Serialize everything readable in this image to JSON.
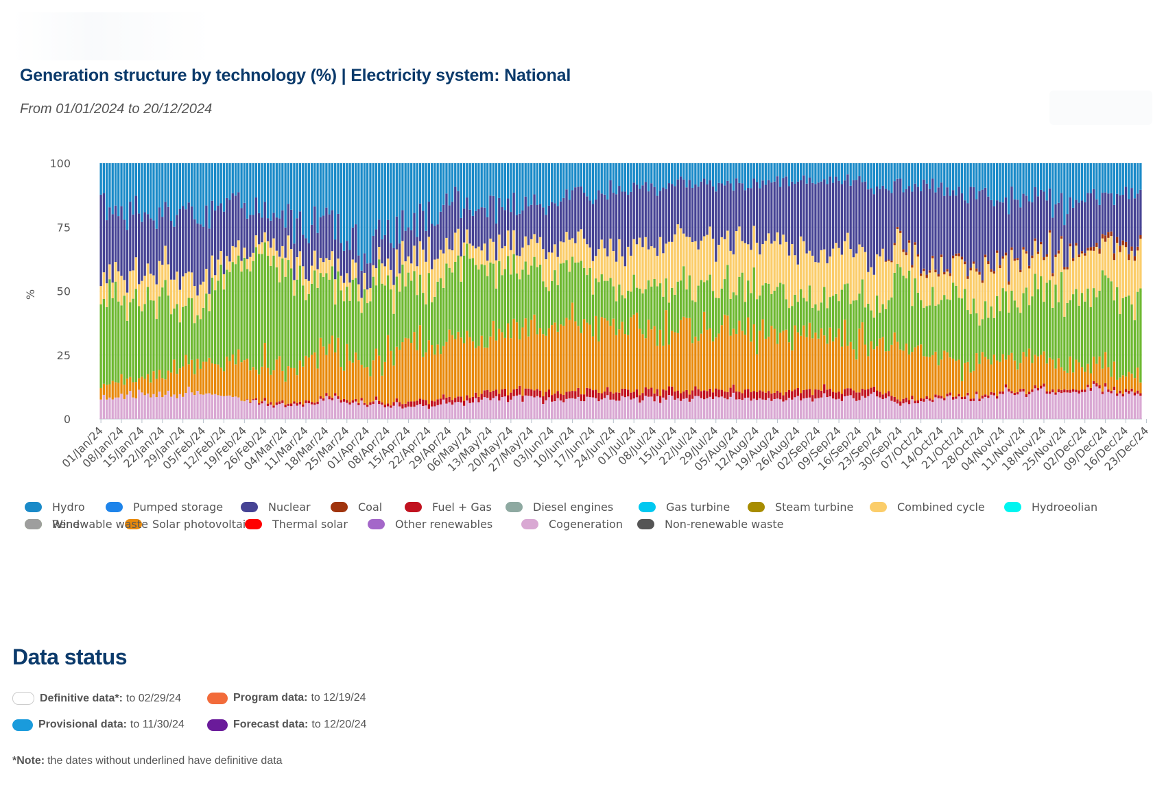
{
  "header": {
    "title": "Generation structure by technology (%) | Electricity system: National",
    "subtitle": "From 01/01/2024 to 20/12/2024"
  },
  "colors": {
    "Hydro": "#1a8ac8",
    "Pumped storage": "#1e84ea",
    "Nuclear": "#464394",
    "Coal": "#a0340e",
    "Fuel + Gas": "#c1121f",
    "Diesel engines": "#8ea9a1",
    "Gas turbine": "#00c8f0",
    "Steam turbine": "#a78c00",
    "Combined cycle": "#fbcd6a",
    "Hydroeolian": "#00f5f0",
    "Wind": "#6db830",
    "Solar photovoltaic": "#e8890b",
    "Thermal solar": "#ff0000",
    "Other renewables": "#a467c9",
    "Cogeneration": "#d9a8d3",
    "Non-renewable waste": "#555555",
    "Renewable waste": "#9e9e9e"
  },
  "legend": [
    "Hydro",
    "Pumped storage",
    "Nuclear",
    "Coal",
    "Fuel + Gas",
    "Diesel engines",
    "Gas turbine",
    "Steam turbine",
    "Combined cycle",
    "Hydroeolian",
    "Wind",
    "Solar photovoltaic",
    "Thermal solar",
    "Other renewables",
    "Cogeneration",
    "Non-renewable waste",
    "Renewable waste"
  ],
  "chart_data": {
    "type": "bar",
    "stacked": true,
    "ylabel": "%",
    "ylim": [
      0,
      100
    ],
    "yticks": [
      0,
      25,
      50,
      75,
      100
    ],
    "x_tick_labels": [
      "01/Jan/24",
      "08/Jan/24",
      "15/Jan/24",
      "22/Jan/24",
      "29/Jan/24",
      "05/Feb/24",
      "12/Feb/24",
      "19/Feb/24",
      "26/Feb/24",
      "04/Mar/24",
      "11/Mar/24",
      "18/Mar/24",
      "25/Mar/24",
      "01/Apr/24",
      "08/Apr/24",
      "15/Apr/24",
      "22/Apr/24",
      "29/Apr/24",
      "06/May/24",
      "13/May/24",
      "20/May/24",
      "27/May/24",
      "03/Jun/24",
      "10/Jun/24",
      "17/Jun/24",
      "24/Jun/24",
      "01/Jul/24",
      "08/Jul/24",
      "15/Jul/24",
      "22/Jul/24",
      "29/Jul/24",
      "05/Aug/24",
      "12/Aug/24",
      "19/Aug/24",
      "26/Aug/24",
      "02/Sep/24",
      "09/Sep/24",
      "16/Sep/24",
      "23/Sep/24",
      "30/Sep/24",
      "07/Oct/24",
      "14/Oct/24",
      "21/Oct/24",
      "28/Oct/24",
      "04/Nov/24",
      "11/Nov/24",
      "18/Nov/24",
      "25/Nov/24",
      "02/Dec/24",
      "09/Dec/24",
      "16/Dec/24",
      "23/Dec/24"
    ],
    "stack_order": [
      "Cogeneration",
      "Fuel + Gas",
      "Solar photovoltaic",
      "Wind",
      "Combined cycle",
      "Coal",
      "Nuclear",
      "Hydro"
    ],
    "weekly_series": [
      {
        "name": "Cogeneration",
        "values": [
          8,
          9,
          9,
          9,
          10,
          10,
          8,
          8,
          6,
          6,
          6,
          8,
          7,
          6,
          5,
          5,
          5,
          6,
          7,
          8,
          8,
          9,
          7,
          8,
          8,
          8,
          8,
          8,
          8,
          8,
          8,
          8,
          8,
          8,
          8,
          8,
          8,
          8,
          9,
          6,
          7,
          8,
          8,
          8,
          10,
          10,
          10,
          9,
          10,
          10,
          9,
          9
        ]
      },
      {
        "name": "Fuel + Gas",
        "values": [
          0,
          0,
          0,
          0,
          0,
          0,
          0,
          0,
          1,
          1,
          1,
          1,
          1,
          1,
          1,
          2,
          2,
          2,
          2,
          3,
          3,
          3,
          3,
          3,
          3,
          3,
          3,
          3,
          3,
          3,
          3,
          3,
          3,
          3,
          3,
          3,
          3,
          3,
          2,
          2,
          1,
          1,
          1,
          1,
          1,
          1,
          1,
          1,
          1,
          1,
          1,
          1
        ]
      },
      {
        "name": "Solar photovoltaic",
        "values": [
          6,
          6,
          5,
          8,
          12,
          12,
          12,
          14,
          14,
          12,
          15,
          18,
          16,
          14,
          18,
          22,
          22,
          23,
          24,
          24,
          26,
          27,
          24,
          27,
          26,
          26,
          24,
          24,
          24,
          24,
          24,
          24,
          22,
          22,
          22,
          22,
          22,
          20,
          18,
          18,
          18,
          16,
          10,
          12,
          12,
          12,
          12,
          10,
          8,
          8,
          6,
          6
        ]
      },
      {
        "name": "Wind",
        "values": [
          35,
          30,
          35,
          35,
          20,
          20,
          40,
          38,
          45,
          35,
          30,
          25,
          25,
          30,
          28,
          25,
          22,
          28,
          30,
          22,
          22,
          20,
          20,
          23,
          20,
          15,
          15,
          17,
          17,
          17,
          17,
          17,
          18,
          17,
          15,
          14,
          17,
          20,
          14,
          30,
          22,
          22,
          30,
          18,
          22,
          20,
          24,
          30,
          22,
          30,
          25,
          30
        ]
      },
      {
        "name": "Combined cycle",
        "values": [
          8,
          10,
          12,
          10,
          12,
          10,
          5,
          5,
          5,
          8,
          7,
          7,
          7,
          6,
          8,
          9,
          13,
          10,
          7,
          8,
          10,
          10,
          12,
          10,
          10,
          14,
          16,
          16,
          18,
          18,
          18,
          18,
          18,
          18,
          19,
          19,
          18,
          15,
          20,
          12,
          12,
          12,
          12,
          18,
          14,
          14,
          14,
          14,
          18,
          16,
          18,
          20
        ]
      },
      {
        "name": "Coal",
        "values": [
          0,
          0,
          0,
          0,
          0,
          0,
          0,
          0,
          0,
          0,
          0,
          0,
          0,
          0,
          0,
          0,
          0,
          0,
          0,
          0,
          0,
          0,
          0,
          0,
          0,
          0,
          0,
          0,
          0,
          0,
          0,
          0,
          0,
          0,
          0,
          0,
          0,
          0,
          0,
          1,
          1,
          1,
          1,
          1,
          1,
          1,
          1,
          1,
          1,
          2,
          2,
          1
        ]
      },
      {
        "name": "Nuclear",
        "values": [
          28,
          25,
          22,
          18,
          26,
          25,
          20,
          18,
          10,
          14,
          16,
          17,
          14,
          10,
          12,
          12,
          14,
          18,
          13,
          17,
          15,
          15,
          18,
          18,
          20,
          24,
          24,
          22,
          22,
          22,
          22,
          22,
          23,
          24,
          26,
          27,
          26,
          27,
          28,
          22,
          30,
          30,
          26,
          30,
          22,
          22,
          20,
          18,
          20,
          15,
          20,
          20
        ]
      },
      {
        "name": "Hydro",
        "values": [
          15,
          20,
          17,
          20,
          20,
          23,
          15,
          17,
          19,
          24,
          25,
          24,
          30,
          33,
          28,
          25,
          22,
          13,
          17,
          18,
          16,
          16,
          16,
          11,
          13,
          10,
          10,
          10,
          8,
          8,
          8,
          8,
          8,
          8,
          7,
          7,
          6,
          7,
          9,
          9,
          9,
          10,
          12,
          12,
          14,
          14,
          12,
          17,
          11,
          11,
          11,
          11
        ]
      }
    ],
    "x_unit": "day",
    "n_days": 356
  },
  "data_status": {
    "title": "Data status",
    "items": [
      {
        "label": "Definitive data*:",
        "value": "to 02/29/24",
        "color": "#ffffff"
      },
      {
        "label": "Program data:",
        "value": "to 12/19/24",
        "color": "#f26b3a"
      },
      {
        "label": "Provisional data:",
        "value": "to 11/30/24",
        "color": "#1a9bdc"
      },
      {
        "label": "Forecast data:",
        "value": "to 12/20/24",
        "color": "#6a1b9a"
      }
    ],
    "note_bold": "*Note:",
    "note_text": "the dates without underlined have definitive data"
  }
}
